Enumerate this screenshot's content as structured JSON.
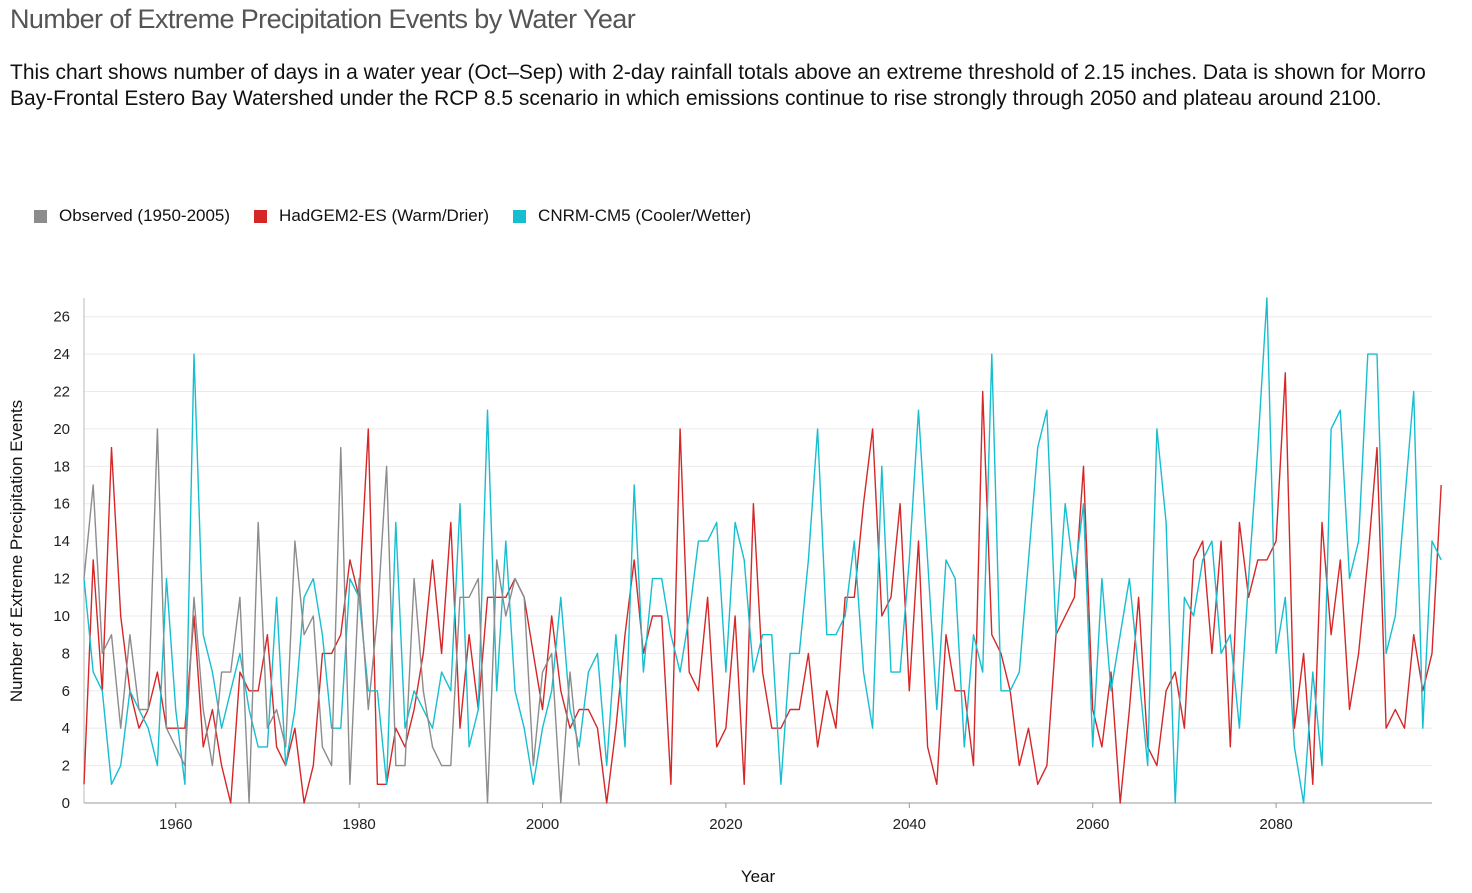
{
  "page": {
    "title": "Number of Extreme Precipitation Events by Water Year",
    "description": "This chart shows number of days in a water year (Oct–Sep) with 2-day rainfall totals above an extreme threshold of 2.15 inches. Data is shown for Morro Bay-Frontal Estero Bay Watershed under the RCP 8.5 scenario in which emissions continue to rise strongly through 2050 and plateau around 2100."
  },
  "chart_data": {
    "type": "line",
    "xlabel": "Year",
    "ylabel": "Number of Extreme Precipitation Events",
    "xlim": [
      1950,
      2097
    ],
    "ylim": [
      0,
      27
    ],
    "x_ticks": [
      1960,
      1980,
      2000,
      2020,
      2040,
      2060,
      2080
    ],
    "y_ticks": [
      0,
      2,
      4,
      6,
      8,
      10,
      12,
      14,
      16,
      18,
      20,
      22,
      24,
      26
    ],
    "grid": "horizontal",
    "legend_position": "top-left",
    "series": [
      {
        "name": "Observed (1950-2005)",
        "color": "#8c8c8c",
        "x_start": 1950,
        "values": [
          12,
          17,
          8,
          9,
          4,
          9,
          5,
          5,
          20,
          4,
          3,
          2,
          11,
          5,
          2,
          7,
          7,
          11,
          0,
          15,
          4,
          5,
          3,
          14,
          9,
          10,
          3,
          2,
          19,
          1,
          12,
          5,
          10,
          18,
          2,
          2,
          12,
          6,
          3,
          2,
          2,
          11,
          11,
          12,
          0,
          13,
          10,
          12,
          11,
          2,
          7,
          8,
          0,
          7,
          2
        ]
      },
      {
        "name": "HadGEM2-ES (Warm/Drier)",
        "color": "#d62728",
        "x_start": 1950,
        "values": [
          1,
          13,
          6,
          19,
          10,
          6,
          4,
          5,
          7,
          4,
          4,
          4,
          10,
          3,
          5,
          2,
          0,
          7,
          6,
          6,
          9,
          3,
          2,
          4,
          0,
          2,
          8,
          8,
          9,
          13,
          11,
          20,
          1,
          1,
          4,
          3,
          5,
          8,
          13,
          8,
          15,
          4,
          9,
          5,
          11,
          11,
          11,
          12,
          11,
          8,
          5,
          10,
          6,
          4,
          5,
          5,
          4,
          0,
          4,
          9,
          13,
          8,
          10,
          10,
          1,
          20,
          7,
          6,
          11,
          3,
          4,
          10,
          1,
          16,
          7,
          4,
          4,
          5,
          5,
          8,
          3,
          6,
          4,
          11,
          11,
          16,
          20,
          10,
          11,
          16,
          6,
          14,
          3,
          1,
          9,
          6,
          6,
          2,
          22,
          9,
          8,
          6,
          2,
          4,
          1,
          2,
          9,
          10,
          11,
          18,
          5,
          3,
          7,
          0,
          5,
          11,
          3,
          2,
          6,
          7,
          4,
          13,
          14,
          8,
          14,
          3,
          15,
          11,
          13,
          13,
          14,
          23,
          4,
          8,
          1,
          15,
          9,
          13,
          5,
          8,
          13,
          19,
          4,
          5,
          4,
          9,
          6,
          8,
          17
        ]
      },
      {
        "name": "CNRM-CM5 (Cooler/Wetter)",
        "color": "#17becf",
        "x_start": 1950,
        "values": [
          12,
          7,
          6,
          1,
          2,
          6,
          5,
          4,
          2,
          12,
          5,
          1,
          24,
          9,
          7,
          4,
          6,
          8,
          5,
          3,
          3,
          11,
          2,
          5,
          11,
          12,
          9,
          4,
          4,
          12,
          11,
          6,
          6,
          1,
          15,
          4,
          6,
          5,
          4,
          7,
          6,
          16,
          3,
          5,
          21,
          6,
          14,
          6,
          4,
          1,
          4,
          6,
          11,
          5,
          3,
          7,
          8,
          2,
          9,
          3,
          17,
          7,
          12,
          12,
          9,
          7,
          10,
          14,
          14,
          15,
          7,
          15,
          13,
          7,
          9,
          9,
          1,
          8,
          8,
          13,
          20,
          9,
          9,
          10,
          14,
          7,
          4,
          18,
          7,
          7,
          13,
          21,
          13,
          5,
          13,
          12,
          3,
          9,
          7,
          24,
          6,
          6,
          7,
          13,
          19,
          21,
          9,
          16,
          12,
          16,
          3,
          12,
          6,
          9,
          12,
          7,
          2,
          20,
          15,
          0,
          11,
          10,
          13,
          14,
          8,
          9,
          4,
          12,
          19,
          27,
          8,
          11,
          3,
          0,
          7,
          2,
          20,
          21,
          12,
          14,
          24,
          24,
          8,
          10,
          16,
          22,
          4,
          14,
          13
        ]
      }
    ]
  }
}
